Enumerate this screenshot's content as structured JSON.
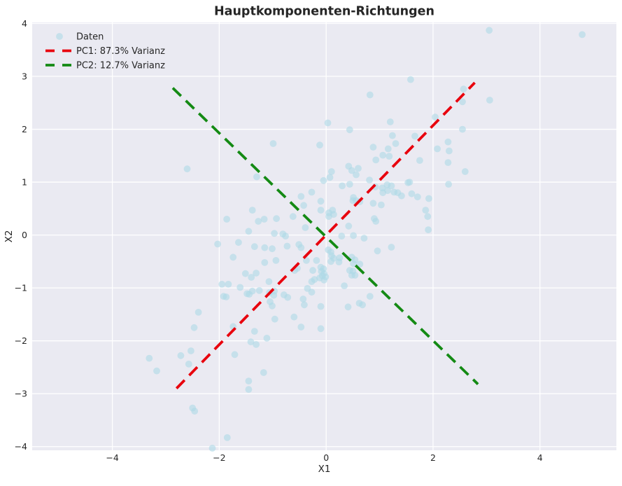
{
  "chart_data": {
    "type": "scatter",
    "title": "Hauptkomponenten-Richtungen",
    "xlabel": "X1",
    "ylabel": "X2",
    "xlim": [
      -5.5,
      5.43
    ],
    "ylim": [
      -4.07,
      4.02
    ],
    "xticks": [
      -4,
      -2,
      0,
      2,
      4
    ],
    "yticks": [
      -4,
      -3,
      -2,
      -1,
      0,
      1,
      2,
      3,
      4
    ],
    "grid": true,
    "axes_background": "#eaeaf2",
    "grid_color": "#ffffff",
    "legend_position": "upper left",
    "series": [
      {
        "name": "Daten",
        "kind": "scatter",
        "color": "#add8e6",
        "alpha": 0.6,
        "points": [
          [
            3.05,
            3.87
          ],
          [
            4.79,
            3.79
          ],
          [
            2.57,
            2.76
          ],
          [
            2.55,
            2.52
          ],
          [
            3.06,
            2.55
          ],
          [
            2.55,
            2.0
          ],
          [
            2.28,
            1.76
          ],
          [
            2.3,
            1.59
          ],
          [
            2.28,
            1.37
          ],
          [
            2.6,
            1.2
          ],
          [
            2.08,
            1.63
          ],
          [
            1.58,
            2.94
          ],
          [
            0.82,
            2.65
          ],
          [
            0.03,
            2.12
          ],
          [
            1.2,
            2.14
          ],
          [
            0.44,
            1.99
          ],
          [
            2.04,
            2.23
          ],
          [
            1.24,
            1.88
          ],
          [
            -0.12,
            1.7
          ],
          [
            -0.99,
            1.73
          ],
          [
            0.88,
            1.66
          ],
          [
            1.3,
            1.73
          ],
          [
            1.16,
            1.63
          ],
          [
            1.06,
            1.51
          ],
          [
            1.18,
            1.49
          ],
          [
            0.93,
            1.42
          ],
          [
            1.66,
            1.87
          ],
          [
            1.75,
            1.41
          ],
          [
            0.42,
            1.3
          ],
          [
            0.48,
            1.22
          ],
          [
            0.1,
            1.2
          ],
          [
            0.6,
            1.26
          ],
          [
            0.56,
            1.14
          ],
          [
            -2.6,
            1.25
          ],
          [
            -1.3,
            1.1
          ],
          [
            -0.05,
            1.03
          ],
          [
            0.81,
            1.04
          ],
          [
            0.92,
            0.91
          ],
          [
            1.05,
            0.89
          ],
          [
            1.14,
            0.95
          ],
          [
            1.22,
            0.93
          ],
          [
            1.06,
            0.8
          ],
          [
            1.15,
            0.84
          ],
          [
            1.27,
            0.81
          ],
          [
            1.34,
            0.8
          ],
          [
            1.41,
            0.74
          ],
          [
            1.6,
            0.78
          ],
          [
            1.53,
            0.99
          ],
          [
            1.03,
            0.57
          ],
          [
            1.91,
            0.1
          ],
          [
            -0.1,
            0.64
          ],
          [
            0.63,
            0.63
          ],
          [
            -0.39,
            0.14
          ],
          [
            0.07,
            1.09
          ],
          [
            0.44,
            0.96
          ],
          [
            0.3,
            0.93
          ],
          [
            -0.27,
            0.81
          ],
          [
            -0.47,
            0.73
          ],
          [
            -0.42,
            0.56
          ],
          [
            -0.1,
            0.47
          ],
          [
            0.12,
            0.47
          ],
          [
            0.05,
            0.42
          ],
          [
            0.14,
            0.39
          ],
          [
            0.05,
            0.35
          ],
          [
            0.51,
            0.71
          ],
          [
            0.5,
            0.65
          ],
          [
            0.56,
            0.65
          ],
          [
            0.88,
            0.6
          ],
          [
            0.9,
            0.31
          ],
          [
            0.93,
            0.26
          ],
          [
            -0.62,
            0.35
          ],
          [
            -0.93,
            0.31
          ],
          [
            -0.97,
            0.03
          ],
          [
            -0.73,
            -0.21
          ],
          [
            -0.51,
            -0.18
          ],
          [
            -0.47,
            -0.24
          ],
          [
            0.42,
            0.17
          ],
          [
            0.29,
            -0.02
          ],
          [
            0.51,
            -0.01
          ],
          [
            0.71,
            -0.06
          ],
          [
            0.04,
            -0.28
          ],
          [
            0.09,
            -0.32
          ],
          [
            0.1,
            -0.39
          ],
          [
            0.14,
            -0.44
          ],
          [
            0.09,
            -0.5
          ],
          [
            0.25,
            -0.43
          ],
          [
            0.24,
            -0.51
          ],
          [
            0.48,
            -0.42
          ],
          [
            0.54,
            -0.47
          ],
          [
            0.51,
            -0.54
          ],
          [
            0.63,
            -0.55
          ],
          [
            0.44,
            -0.67
          ],
          [
            0.5,
            -0.68
          ],
          [
            0.54,
            -0.76
          ],
          [
            0.48,
            -0.76
          ],
          [
            0.96,
            -0.3
          ],
          [
            1.22,
            -0.23
          ],
          [
            -0.1,
            -0.61
          ],
          [
            -0.05,
            -0.64
          ],
          [
            -0.09,
            -0.69
          ],
          [
            -0.04,
            -0.73
          ],
          [
            -0.01,
            -0.79
          ],
          [
            -0.07,
            -0.77
          ],
          [
            -0.12,
            -0.81
          ],
          [
            -0.04,
            -0.85
          ],
          [
            -0.25,
            -0.67
          ],
          [
            -0.27,
            -0.88
          ],
          [
            -0.22,
            -0.84
          ],
          [
            -0.54,
            -0.63
          ],
          [
            -0.59,
            -0.67
          ],
          [
            -0.79,
            -1.13
          ],
          [
            -0.72,
            -1.18
          ],
          [
            -0.41,
            -1.32
          ],
          [
            0.34,
            -0.96
          ],
          [
            0.82,
            -1.16
          ],
          [
            0.62,
            -1.29
          ],
          [
            0.68,
            -1.32
          ],
          [
            0.41,
            -1.36
          ],
          [
            1.56,
            1.0
          ],
          [
            1.71,
            0.72
          ],
          [
            1.92,
            0.69
          ],
          [
            1.86,
            0.47
          ],
          [
            1.9,
            0.35
          ],
          [
            2.29,
            0.96
          ],
          [
            -0.81,
            0.02
          ],
          [
            -0.76,
            -0.02
          ],
          [
            -1.01,
            -0.26
          ],
          [
            -0.94,
            -0.48
          ],
          [
            -1.07,
            -0.88
          ],
          [
            -1.44,
            -1.12
          ],
          [
            -1.06,
            -1.09
          ],
          [
            -0.97,
            -1.06
          ],
          [
            -0.98,
            -1.14
          ],
          [
            -1.05,
            -1.26
          ],
          [
            -0.37,
            -0.48
          ],
          [
            -0.18,
            -0.48
          ],
          [
            -0.35,
            -1.01
          ],
          [
            -0.27,
            -1.08
          ],
          [
            -0.43,
            -1.21
          ],
          [
            -0.1,
            -1.35
          ],
          [
            -1.86,
            0.3
          ],
          [
            -1.38,
            0.47
          ],
          [
            -1.27,
            0.26
          ],
          [
            -1.16,
            0.3
          ],
          [
            -1.45,
            0.07
          ],
          [
            -1.64,
            -0.14
          ],
          [
            -2.03,
            -0.17
          ],
          [
            -1.34,
            -0.22
          ],
          [
            -1.15,
            -0.24
          ],
          [
            -1.74,
            -0.42
          ],
          [
            -1.15,
            -0.52
          ],
          [
            -1.51,
            -0.73
          ],
          [
            -1.4,
            -0.8
          ],
          [
            -1.31,
            -0.72
          ],
          [
            -1.95,
            -0.93
          ],
          [
            -1.83,
            -0.93
          ],
          [
            -1.61,
            -0.99
          ],
          [
            -1.48,
            -1.11
          ],
          [
            -1.38,
            -1.06
          ],
          [
            -1.25,
            -1.05
          ],
          [
            -1.92,
            -1.16
          ],
          [
            -1.87,
            -1.17
          ],
          [
            -2.39,
            -1.46
          ],
          [
            -1.01,
            -1.34
          ],
          [
            -2.47,
            -1.75
          ],
          [
            -3.31,
            -2.33
          ],
          [
            -3.17,
            -2.57
          ],
          [
            -2.72,
            -2.28
          ],
          [
            -2.53,
            -2.19
          ],
          [
            -2.57,
            -2.44
          ],
          [
            -1.74,
            -1.73
          ],
          [
            -1.34,
            -1.82
          ],
          [
            -1.41,
            -2.02
          ],
          [
            -1.31,
            -2.07
          ],
          [
            -1.11,
            -1.95
          ],
          [
            -1.71,
            -2.26
          ],
          [
            -1.17,
            -2.6
          ],
          [
            -1.45,
            -2.76
          ],
          [
            -1.45,
            -2.92
          ],
          [
            -2.5,
            -3.27
          ],
          [
            -2.46,
            -3.33
          ],
          [
            -1.85,
            -3.83
          ],
          [
            -2.13,
            -4.03
          ],
          [
            -0.6,
            -1.55
          ],
          [
            -0.96,
            -1.59
          ],
          [
            -0.47,
            -1.74
          ],
          [
            -0.1,
            -1.77
          ]
        ]
      },
      {
        "name": "PC1: 87.3% Varianz",
        "kind": "line",
        "style": "dashed",
        "color": "#e8000d",
        "from": [
          -2.8,
          -2.9
        ],
        "to": [
          2.78,
          2.88
        ]
      },
      {
        "name": "PC2: 12.7% Varianz",
        "kind": "line",
        "style": "dashed",
        "color": "#148a14",
        "from": [
          -2.87,
          2.78
        ],
        "to": [
          2.84,
          -2.82
        ]
      }
    ]
  }
}
